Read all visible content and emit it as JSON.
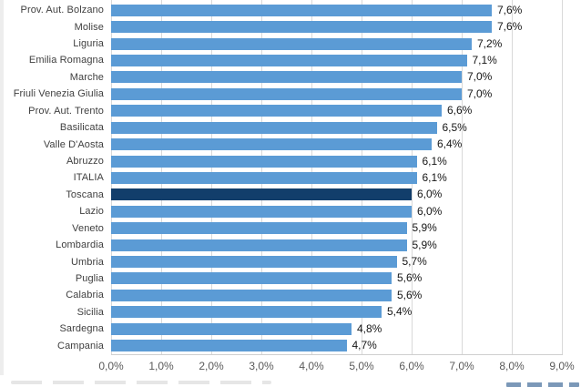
{
  "chart_data": {
    "type": "bar",
    "orientation": "horizontal",
    "title": "",
    "xlabel": "",
    "ylabel": "",
    "categories": [
      "Prov. Aut. Bolzano",
      "Molise",
      "Liguria",
      "Emilia Romagna",
      "Marche",
      "Friuli Venezia Giulia",
      "Prov. Aut. Trento",
      "Basilicata",
      "Valle D'Aosta",
      "Abruzzo",
      "ITALIA",
      "Toscana",
      "Lazio",
      "Veneto",
      "Lombardia",
      "Umbria",
      "Puglia",
      "Calabria",
      "Sicilia",
      "Sardegna",
      "Campania"
    ],
    "values": [
      7.6,
      7.6,
      7.2,
      7.1,
      7.0,
      7.0,
      6.6,
      6.5,
      6.4,
      6.1,
      6.1,
      6.0,
      6.0,
      5.9,
      5.9,
      5.7,
      5.6,
      5.6,
      5.4,
      4.8,
      4.7
    ],
    "value_labels": [
      "7,6%",
      "7,6%",
      "7,2%",
      "7,1%",
      "7,0%",
      "7,0%",
      "6,6%",
      "6,5%",
      "6,4%",
      "6,1%",
      "6,1%",
      "6,0%",
      "6,0%",
      "5,9%",
      "5,9%",
      "5,7%",
      "5,6%",
      "5,6%",
      "5,4%",
      "4,8%",
      "4,7%"
    ],
    "highlight_category": "Toscana",
    "x_ticks": [
      "0,0%",
      "1,0%",
      "2,0%",
      "3,0%",
      "4,0%",
      "5,0%",
      "6,0%",
      "7,0%",
      "8,0%",
      "9,0%"
    ],
    "xlim": [
      0,
      9
    ],
    "grid": "vertical",
    "legend": "none",
    "colors": {
      "bar": "#5b9bd5",
      "highlight_bar": "#123e6b",
      "gridline": "#d9d9d9",
      "tick_label": "#595959",
      "category_label": "#3f3f3f",
      "value_label": "#151515"
    }
  }
}
